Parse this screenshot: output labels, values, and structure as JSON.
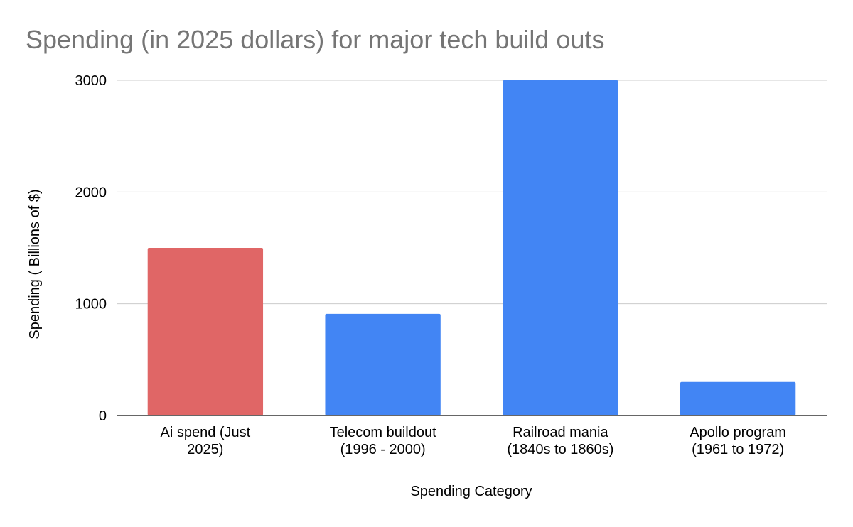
{
  "chart_data": {
    "type": "bar",
    "title": "Spending (in 2025 dollars) for major tech build outs",
    "xlabel": "Spending Category",
    "ylabel": "Spending ( Billions of $)",
    "ylim": [
      0,
      3000
    ],
    "yticks": [
      0,
      1000,
      2000,
      3000
    ],
    "grid": true,
    "categories": [
      [
        "Ai spend (Just",
        "2025)"
      ],
      [
        "Telecom buildout",
        "(1996 - 2000)"
      ],
      [
        "Railroad mania",
        "(1840s to 1860s)"
      ],
      [
        "Apollo program",
        "(1961 to 1972)"
      ]
    ],
    "values": [
      1500,
      910,
      3000,
      300
    ],
    "colors": [
      "#e06666",
      "#4285f4",
      "#4285f4",
      "#4285f4"
    ]
  }
}
